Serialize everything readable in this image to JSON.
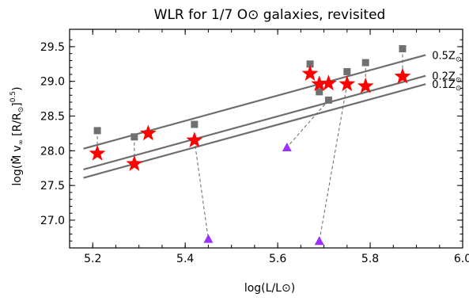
{
  "chart_data": {
    "type": "scatter",
    "title": "WLR for 1/7 O⊙ galaxies, revisited",
    "xlabel": "log(L/L⊙)",
    "ylabel_parts": {
      "prefix": "log(",
      "mdot": "M",
      "vinf": "v",
      "vinf_sub": "∞",
      "bracket": "[R/R",
      "bracket_sub": "⊙",
      "bracket_close": "]",
      "exp": "0.5",
      "suffix": ")"
    },
    "xlim": [
      5.15,
      6.0
    ],
    "ylim": [
      26.6,
      29.75
    ],
    "x_ticks": [
      "5.2",
      "5.4",
      "5.6",
      "5.8",
      "6.0"
    ],
    "y_ticks": [
      "27.0",
      "27.5",
      "28.0",
      "28.5",
      "29.0",
      "29.5"
    ],
    "grid": false,
    "relations": [
      {
        "label": "0.5Z⊙",
        "x": [
          5.18,
          5.92
        ],
        "y": [
          28.03,
          29.38
        ]
      },
      {
        "label": "0.2Z⊙",
        "x": [
          5.18,
          5.92
        ],
        "y": [
          27.73,
          29.08
        ]
      },
      {
        "label": "0.1Z⊙",
        "x": [
          5.18,
          5.92
        ],
        "y": [
          27.61,
          28.96
        ]
      }
    ],
    "squares": [
      {
        "x": 5.21,
        "y": 28.29
      },
      {
        "x": 5.29,
        "y": 28.2
      },
      {
        "x": 5.32,
        "y": 28.25
      },
      {
        "x": 5.42,
        "y": 28.38
      },
      {
        "x": 5.67,
        "y": 29.25
      },
      {
        "x": 5.69,
        "y": 28.85
      },
      {
        "x": 5.71,
        "y": 28.73
      },
      {
        "x": 5.75,
        "y": 29.14
      },
      {
        "x": 5.79,
        "y": 29.27
      },
      {
        "x": 5.87,
        "y": 29.47
      }
    ],
    "stars": [
      {
        "x": 5.21,
        "y": 27.96
      },
      {
        "x": 5.29,
        "y": 27.81
      },
      {
        "x": 5.32,
        "y": 28.25
      },
      {
        "x": 5.42,
        "y": 28.15
      },
      {
        "x": 5.67,
        "y": 29.11
      },
      {
        "x": 5.69,
        "y": 28.96
      },
      {
        "x": 5.71,
        "y": 28.97
      },
      {
        "x": 5.75,
        "y": 28.96
      },
      {
        "x": 5.79,
        "y": 28.93
      },
      {
        "x": 5.87,
        "y": 29.07
      }
    ],
    "triangles": [
      {
        "x": 5.45,
        "y": 26.73
      },
      {
        "x": 5.62,
        "y": 28.05
      },
      {
        "x": 5.69,
        "y": 26.7
      }
    ],
    "dashed_links": [
      {
        "from": [
          5.42,
          28.15
        ],
        "to": [
          5.45,
          26.73
        ]
      },
      {
        "from": [
          5.71,
          28.73
        ],
        "to": [
          5.62,
          28.05
        ]
      },
      {
        "from": [
          5.75,
          28.96
        ],
        "to": [
          5.69,
          26.7
        ]
      },
      {
        "from": [
          5.21,
          28.29
        ],
        "to": [
          5.21,
          27.96
        ]
      },
      {
        "from": [
          5.29,
          28.2
        ],
        "to": [
          5.29,
          27.81
        ]
      },
      {
        "from": [
          5.67,
          29.25
        ],
        "to": [
          5.67,
          29.11
        ]
      },
      {
        "from": [
          5.69,
          28.85
        ],
        "to": [
          5.69,
          28.96
        ]
      },
      {
        "from": [
          5.75,
          29.14
        ],
        "to": [
          5.75,
          28.96
        ]
      },
      {
        "from": [
          5.79,
          29.27
        ],
        "to": [
          5.79,
          28.93
        ]
      },
      {
        "from": [
          5.87,
          29.47
        ],
        "to": [
          5.87,
          29.07
        ]
      }
    ],
    "colors": {
      "square": "#707070",
      "star": "#ff0000",
      "triangle": "#9b30ff",
      "line": "#6e6e6e",
      "dash": "#666666",
      "axis": "#000000"
    }
  }
}
